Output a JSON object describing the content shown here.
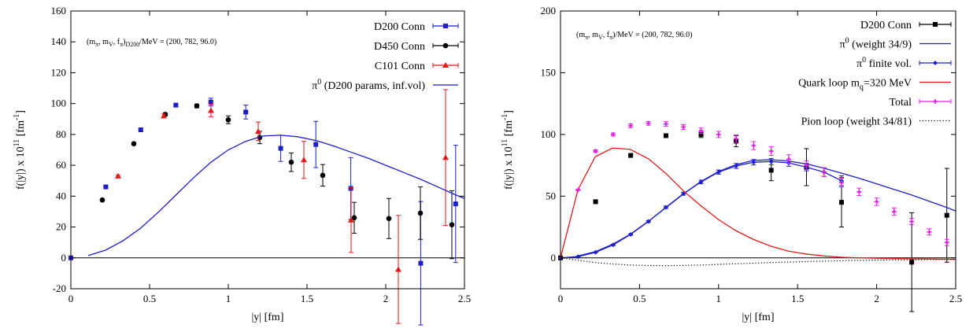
{
  "colors": {
    "blue": "#1f1fc8",
    "black": "#000000",
    "red": "#e01a1a",
    "magenta": "#e020e0"
  },
  "chart_data": [
    {
      "type": "scatter",
      "xlabel": "|y| [fm]",
      "ylabel": "f(|y|) x 10^11 [fm^-1]",
      "ylabel_parts": {
        "main": "f(|y|) x 10",
        "exp": "11",
        "unit": " [fm",
        "unit_exp": "-1",
        "close": "]"
      },
      "xlim": [
        0,
        2.5
      ],
      "ylim": [
        -20,
        160
      ],
      "xticks": [
        0,
        0.5,
        1,
        1.5,
        2,
        2.5
      ],
      "xtick_labels": [
        "0",
        "0.5",
        "1",
        "1.5",
        "2",
        "2.5"
      ],
      "yticks": [
        -20,
        0,
        20,
        40,
        60,
        80,
        100,
        120,
        140,
        160
      ],
      "ytick_labels": [
        "-20",
        "0",
        "20",
        "40",
        "60",
        "80",
        "100",
        "120",
        "140",
        "160"
      ],
      "grid": false,
      "legend_position": "top-right",
      "annotation": {
        "prefix": "(m",
        "s1": "π",
        "mid1": ", m",
        "s2": "V",
        "mid2": ", f",
        "s3": "π",
        "mid3": ")",
        "s4": "D200",
        "suffix": "/MeV = (200, 782, 96.0)"
      },
      "zero_line": true,
      "series": [
        {
          "name": "D200 Conn",
          "kind": "points",
          "marker": "square",
          "color": "#1f1fc8",
          "x": [
            0.0,
            0.222,
            0.444,
            0.667,
            0.889,
            1.111,
            1.333,
            1.556,
            1.778,
            2.222,
            2.444
          ],
          "y": [
            0,
            46,
            83,
            99,
            101,
            94.5,
            71,
            73.5,
            45,
            -3.5,
            35
          ],
          "err": [
            0,
            0.8,
            0.8,
            1.0,
            2.5,
            4.5,
            8.5,
            15,
            20,
            40,
            38
          ]
        },
        {
          "name": "D450 Conn",
          "kind": "points",
          "marker": "circle",
          "color": "#000000",
          "x": [
            0.2,
            0.4,
            0.6,
            0.8,
            1.0,
            1.2,
            1.4,
            1.6,
            1.8,
            2.02,
            2.22,
            2.42
          ],
          "y": [
            37.5,
            74,
            93,
            98.5,
            89.5,
            78,
            62,
            53.5,
            26,
            25.5,
            29,
            21.5
          ],
          "err": [
            0.5,
            0.8,
            1.0,
            1.2,
            2.5,
            4,
            6,
            7,
            10,
            13,
            17,
            22
          ]
        },
        {
          "name": "C101 Conn",
          "kind": "points",
          "marker": "triangle",
          "color": "#e01a1a",
          "x": [
            0.3,
            0.59,
            0.89,
            1.19,
            1.48,
            1.78,
            2.08,
            2.38
          ],
          "y": [
            53,
            92,
            95.5,
            82,
            63.5,
            24.5,
            -7.5,
            65
          ],
          "err": [
            0.6,
            1.2,
            4,
            6,
            12,
            21,
            35,
            44
          ]
        },
        {
          "name": "π^0 (D200 params, inf.vol)",
          "name_parts": {
            "base": "π",
            "sup": "0",
            "rest": " (D200 params, inf.vol)"
          },
          "kind": "line",
          "color": "#1f1fc8",
          "x": [
            0.11,
            0.22,
            0.33,
            0.44,
            0.56,
            0.67,
            0.78,
            0.89,
            1.0,
            1.11,
            1.22,
            1.33,
            1.44,
            1.56,
            1.67,
            1.78,
            1.89,
            2.0,
            2.11,
            2.22,
            2.33,
            2.44,
            2.5
          ],
          "y": [
            1.5,
            5,
            11,
            19,
            30,
            41,
            52,
            62,
            70,
            75.5,
            79,
            79.5,
            78.5,
            76,
            72.5,
            68.5,
            64.5,
            60,
            55.5,
            51,
            46,
            41,
            38.5
          ]
        }
      ]
    },
    {
      "type": "scatter",
      "xlabel": "|y| [fm]",
      "ylabel": "f(|y|) x 10^11 [fm^-1]",
      "ylabel_parts": {
        "main": "f(|y|) x 10",
        "exp": "11",
        "unit": " [fm",
        "unit_exp": "-1",
        "close": "]"
      },
      "xlim": [
        0,
        2.5
      ],
      "ylim": [
        -25,
        200
      ],
      "xticks": [
        0,
        0.5,
        1,
        1.5,
        2,
        2.5
      ],
      "xtick_labels": [
        "0",
        "0.5",
        "1",
        "1.5",
        "2",
        "2.5"
      ],
      "yticks": [
        0,
        50,
        100,
        150,
        200
      ],
      "ytick_labels": [
        "0",
        "50",
        "100",
        "150",
        "200"
      ],
      "grid": false,
      "legend_position": "top-right",
      "annotation": {
        "prefix": "(m",
        "s1": "π",
        "mid1": ", m",
        "s2": "V",
        "mid2": ", f",
        "s3": "π",
        "mid3": ")",
        "s4": "",
        "suffix": "/MeV = (200, 782, 96.0)"
      },
      "zero_line": true,
      "series": [
        {
          "name": "D200 Conn",
          "kind": "points",
          "marker": "square",
          "color": "#000000",
          "x": [
            0.0,
            0.222,
            0.444,
            0.667,
            0.889,
            1.111,
            1.333,
            1.556,
            1.778,
            2.222,
            2.444
          ],
          "y": [
            0,
            45.5,
            83,
            99,
            100,
            94.5,
            71,
            73.5,
            45,
            -3.5,
            34.5
          ],
          "err": [
            0,
            0.8,
            0.8,
            1.0,
            2.5,
            4.5,
            8.5,
            15,
            20,
            40,
            38
          ]
        },
        {
          "name": "π^0 (weight 34/9)",
          "name_parts": {
            "base": "π",
            "sup": "0",
            "rest": " (weight 34/9)"
          },
          "kind": "line",
          "color": "#1f1fc8",
          "x": [
            0.11,
            0.22,
            0.33,
            0.44,
            0.56,
            0.67,
            0.78,
            0.89,
            1.0,
            1.11,
            1.22,
            1.33,
            1.44,
            1.56,
            1.67,
            1.78,
            1.89,
            2.0,
            2.11,
            2.22,
            2.33,
            2.44,
            2.5
          ],
          "y": [
            1.5,
            5,
            11,
            19,
            30,
            41,
            52,
            62,
            70,
            75.5,
            79,
            79.5,
            78.5,
            76,
            72.5,
            68.5,
            64.5,
            60,
            55.5,
            51,
            46,
            41,
            38
          ]
        },
        {
          "name": "π^0 finite vol.",
          "name_parts": {
            "base": "π",
            "sup": "0",
            "rest": " finite vol."
          },
          "kind": "linepoints",
          "marker": "diamond",
          "color": "#1f1fc8",
          "x": [
            0.0,
            0.111,
            0.222,
            0.333,
            0.444,
            0.556,
            0.667,
            0.778,
            0.889,
            1.0,
            1.111,
            1.222,
            1.333,
            1.444,
            1.556,
            1.667,
            1.778
          ],
          "y": [
            0,
            1,
            4.5,
            10.5,
            19,
            29.5,
            41,
            52,
            61.5,
            69.5,
            74.5,
            77.5,
            78,
            77,
            73.5,
            69.5,
            62.5
          ],
          "err": [
            0,
            0.3,
            0.3,
            0.5,
            0.6,
            0.8,
            1.0,
            1.2,
            1.5,
            1.7,
            2,
            2.2,
            2.5,
            2.8,
            3,
            3.5,
            4
          ]
        },
        {
          "name": "Quark loop m_q=320 MeV",
          "name_parts": {
            "base": "Quark loop m",
            "sub": "q",
            "rest": "=320 MeV"
          },
          "kind": "line",
          "color": "#e01a1a",
          "x": [
            0.0,
            0.11,
            0.22,
            0.33,
            0.44,
            0.56,
            0.67,
            0.78,
            0.89,
            1.0,
            1.11,
            1.22,
            1.33,
            1.44,
            1.56,
            1.67,
            1.78,
            1.89,
            2.0,
            2.22,
            2.5
          ],
          "y": [
            0,
            55,
            82,
            89,
            88,
            80,
            68,
            54,
            42,
            31,
            22,
            15,
            9.5,
            5.5,
            3,
            1.5,
            0.5,
            0,
            -0.3,
            -0.8,
            -1.2
          ]
        },
        {
          "name": "Total",
          "kind": "points",
          "marker": "plus",
          "color": "#e020e0",
          "x": [
            0.111,
            0.222,
            0.333,
            0.444,
            0.556,
            0.667,
            0.778,
            0.889,
            1.0,
            1.111,
            1.222,
            1.333,
            1.444,
            1.556,
            1.667,
            1.778,
            1.889,
            2.0,
            2.111,
            2.222,
            2.333,
            2.444
          ],
          "y": [
            55,
            86.5,
            100,
            107,
            109,
            108.5,
            106,
            103,
            100,
            96.5,
            91,
            86.5,
            80,
            75,
            69.5,
            61,
            53.5,
            45.5,
            37.5,
            29.5,
            21,
            12.5
          ],
          "err": [
            0.5,
            1,
            1.2,
            1.5,
            1.5,
            1.8,
            2,
            2.2,
            2.5,
            3,
            3.2,
            3.5,
            3.5,
            3.5,
            3.5,
            3.5,
            3,
            3,
            3,
            2.5,
            2.5,
            2.5
          ]
        },
        {
          "name": "Pion loop (weight 34/81)",
          "kind": "dotted",
          "color": "#000000",
          "x": [
            0.0,
            0.11,
            0.22,
            0.33,
            0.44,
            0.56,
            0.67,
            0.78,
            0.89,
            1.0,
            1.11,
            1.22,
            1.33,
            1.56,
            1.78,
            2.0,
            2.22,
            2.5
          ],
          "y": [
            0,
            -2,
            -3.8,
            -5,
            -5.8,
            -6.2,
            -6.3,
            -6.1,
            -5.8,
            -5.3,
            -4.8,
            -4.3,
            -3.8,
            -3.0,
            -2.3,
            -1.8,
            -1.5,
            -1.2
          ]
        }
      ]
    }
  ]
}
